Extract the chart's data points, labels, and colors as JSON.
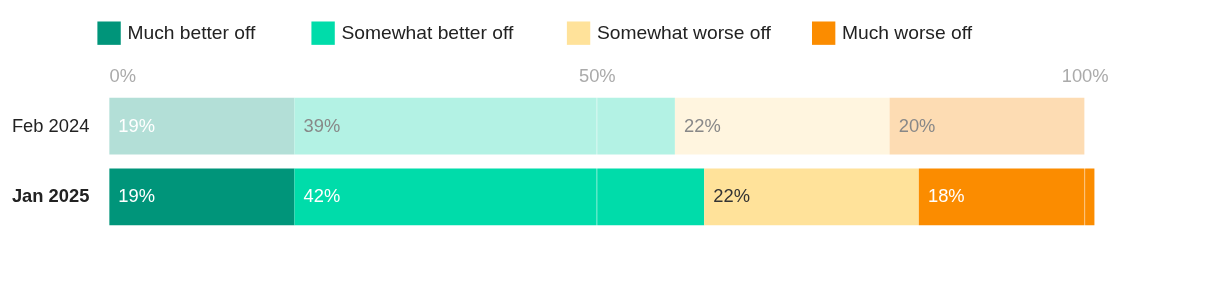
{
  "chart_data": {
    "type": "bar",
    "orientation": "horizontal",
    "stacked": true,
    "categories": [
      "Feb 2024",
      "Jan 2025"
    ],
    "series": [
      {
        "name": "Much better off",
        "color": "#00957a",
        "colors": [
          "#b3dfd7",
          "#00957a"
        ],
        "values": [
          19,
          19
        ],
        "value_labels": [
          "19%",
          "19%"
        ]
      },
      {
        "name": "Somewhat better off",
        "color": "#00dcaa",
        "colors": [
          "#b3f2e4",
          "#00dcaa"
        ],
        "values": [
          39,
          42
        ],
        "value_labels": [
          "39%",
          "42%"
        ]
      },
      {
        "name": "Somewhat worse off",
        "color": "#ffe29a",
        "colors": [
          "#fff5df",
          "#ffe29a"
        ],
        "values": [
          22,
          22
        ],
        "value_labels": [
          "22%",
          "22%"
        ]
      },
      {
        "name": "Much worse off",
        "color": "#fb8c00",
        "colors": [
          "#fddcb3",
          "#fb8c00"
        ],
        "values": [
          20,
          18
        ],
        "value_labels": [
          "20%",
          "18%"
        ]
      }
    ],
    "xlim": [
      0,
      101
    ],
    "xticks": [
      {
        "value": 0,
        "label": "0%"
      },
      {
        "value": 50,
        "label": "50%"
      },
      {
        "value": 100,
        "label": "100%"
      }
    ],
    "grid": "x",
    "legend": "top left"
  }
}
